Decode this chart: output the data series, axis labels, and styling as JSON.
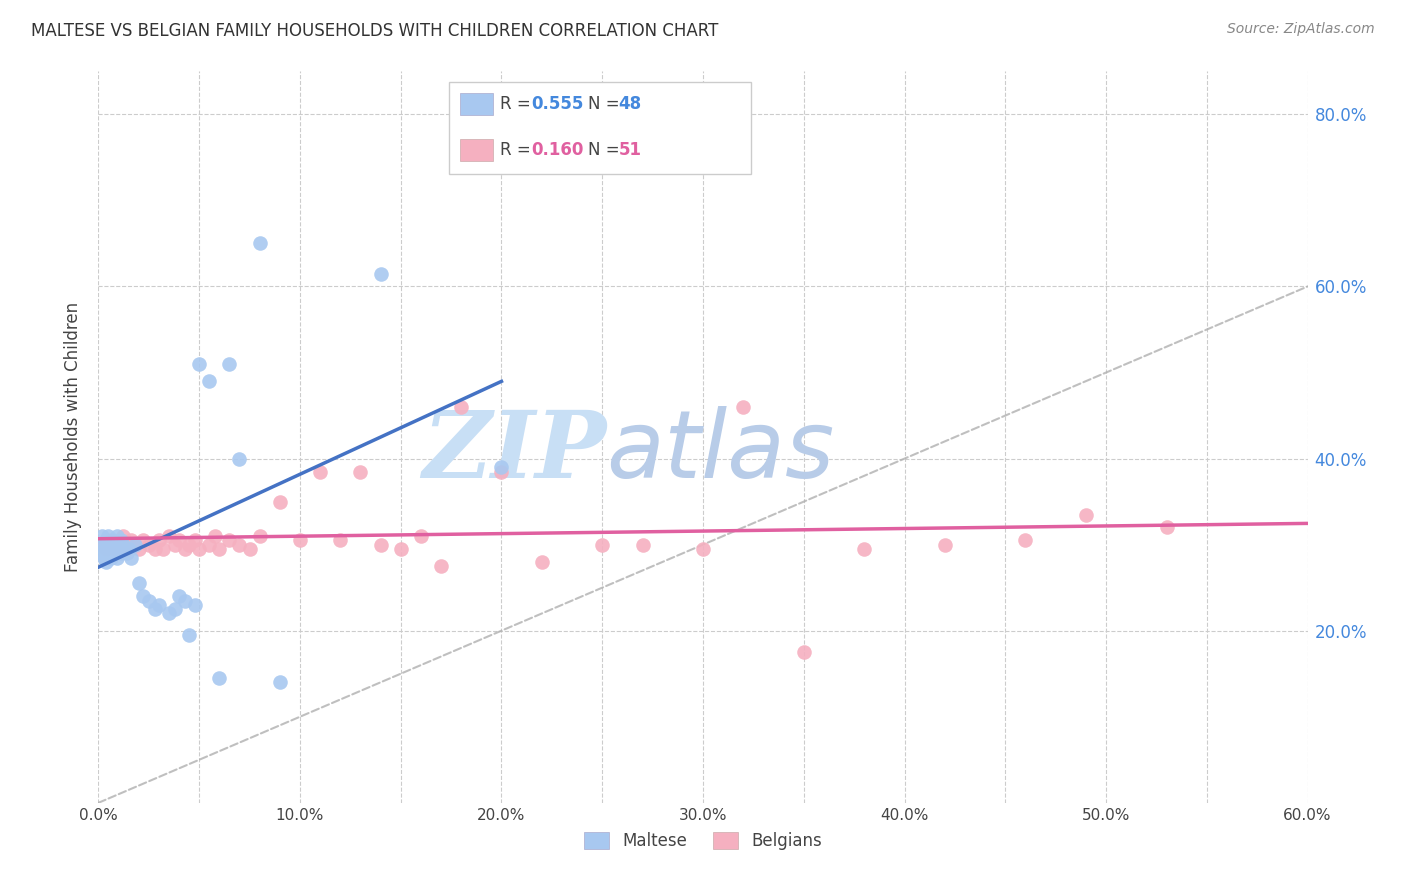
{
  "title": "MALTESE VS BELGIAN FAMILY HOUSEHOLDS WITH CHILDREN CORRELATION CHART",
  "source": "Source: ZipAtlas.com",
  "ylabel": "Family Households with Children",
  "xlim": [
    0.0,
    0.6
  ],
  "ylim": [
    0.0,
    0.85
  ],
  "xtick_labels": [
    "0.0%",
    "",
    "10.0%",
    "",
    "20.0%",
    "",
    "30.0%",
    "",
    "40.0%",
    "",
    "50.0%",
    "",
    "60.0%"
  ],
  "xtick_values": [
    0.0,
    0.05,
    0.1,
    0.15,
    0.2,
    0.25,
    0.3,
    0.35,
    0.4,
    0.45,
    0.5,
    0.55,
    0.6
  ],
  "ytick_labels": [
    "20.0%",
    "40.0%",
    "60.0%",
    "80.0%"
  ],
  "ytick_values": [
    0.2,
    0.4,
    0.6,
    0.8
  ],
  "legend1_R": "0.555",
  "legend1_N": "48",
  "legend2_R": "0.160",
  "legend2_N": "51",
  "maltese_color": "#a8c8f0",
  "belgian_color": "#f5b0c0",
  "line_maltese_color": "#4472c4",
  "line_belgian_color": "#e060a0",
  "diagonal_color": "#b0b0b0",
  "watermark_color": "#d8eaf8",
  "background_color": "#ffffff",
  "maltese_x": [
    0.001,
    0.002,
    0.002,
    0.003,
    0.003,
    0.004,
    0.004,
    0.005,
    0.005,
    0.006,
    0.006,
    0.007,
    0.007,
    0.008,
    0.008,
    0.009,
    0.009,
    0.01,
    0.01,
    0.011,
    0.011,
    0.012,
    0.012,
    0.013,
    0.014,
    0.015,
    0.016,
    0.018,
    0.02,
    0.022,
    0.025,
    0.028,
    0.03,
    0.035,
    0.038,
    0.04,
    0.043,
    0.045,
    0.048,
    0.05,
    0.055,
    0.06,
    0.065,
    0.07,
    0.08,
    0.09,
    0.14,
    0.2
  ],
  "maltese_y": [
    0.29,
    0.3,
    0.31,
    0.295,
    0.285,
    0.305,
    0.28,
    0.295,
    0.31,
    0.3,
    0.285,
    0.305,
    0.295,
    0.3,
    0.29,
    0.31,
    0.285,
    0.3,
    0.295,
    0.305,
    0.29,
    0.3,
    0.295,
    0.295,
    0.29,
    0.295,
    0.285,
    0.3,
    0.255,
    0.24,
    0.235,
    0.225,
    0.23,
    0.22,
    0.225,
    0.24,
    0.235,
    0.195,
    0.23,
    0.51,
    0.49,
    0.145,
    0.51,
    0.4,
    0.65,
    0.14,
    0.615,
    0.39
  ],
  "belgian_x": [
    0.002,
    0.004,
    0.006,
    0.008,
    0.01,
    0.012,
    0.014,
    0.016,
    0.018,
    0.02,
    0.022,
    0.025,
    0.028,
    0.03,
    0.032,
    0.035,
    0.038,
    0.04,
    0.043,
    0.045,
    0.048,
    0.05,
    0.055,
    0.058,
    0.06,
    0.065,
    0.07,
    0.075,
    0.08,
    0.09,
    0.1,
    0.11,
    0.12,
    0.13,
    0.14,
    0.15,
    0.16,
    0.17,
    0.18,
    0.2,
    0.22,
    0.25,
    0.27,
    0.3,
    0.32,
    0.35,
    0.38,
    0.42,
    0.46,
    0.49,
    0.53
  ],
  "belgian_y": [
    0.3,
    0.295,
    0.305,
    0.295,
    0.3,
    0.31,
    0.295,
    0.305,
    0.3,
    0.295,
    0.305,
    0.3,
    0.295,
    0.305,
    0.295,
    0.31,
    0.3,
    0.305,
    0.295,
    0.3,
    0.305,
    0.295,
    0.3,
    0.31,
    0.295,
    0.305,
    0.3,
    0.295,
    0.31,
    0.35,
    0.305,
    0.385,
    0.305,
    0.385,
    0.3,
    0.295,
    0.31,
    0.275,
    0.46,
    0.385,
    0.28,
    0.3,
    0.3,
    0.295,
    0.46,
    0.175,
    0.295,
    0.3,
    0.305,
    0.335,
    0.32
  ]
}
